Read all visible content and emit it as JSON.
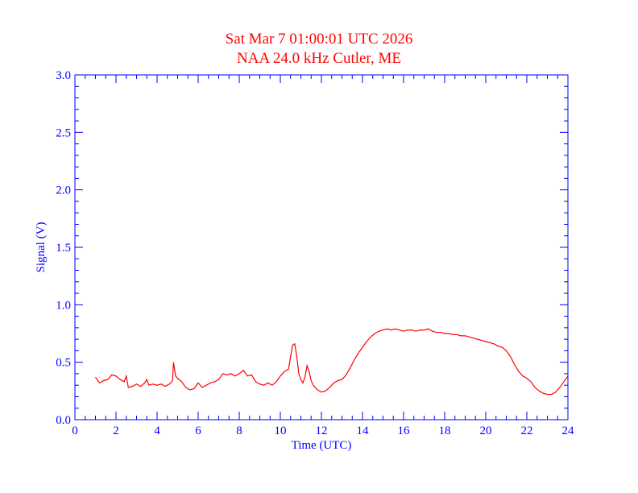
{
  "chart_data": {
    "type": "line",
    "title": "Sat Mar 7 01:00:01 UTC 2026",
    "subtitle": "NAA 24.0 kHz Cutler, ME",
    "xlabel": "Time (UTC)",
    "ylabel": "Signal (V)",
    "xlim": [
      0,
      24
    ],
    "ylim": [
      0,
      3.0
    ],
    "x_ticks": [
      "0",
      "2",
      "4",
      "6",
      "8",
      "10",
      "12",
      "14",
      "16",
      "18",
      "20",
      "22",
      "24"
    ],
    "y_ticks": [
      "0.0",
      "0.5",
      "1.0",
      "1.5",
      "2.0",
      "2.5",
      "3.0"
    ],
    "grid": false,
    "colors": {
      "axes": "#0000ff",
      "series": "#ff0000",
      "title": "#ff0000"
    },
    "series": [
      {
        "x": [
          1.0,
          1.2,
          1.4,
          1.6,
          1.8,
          2.0,
          2.2,
          2.4,
          2.5,
          2.6,
          2.8,
          3.0,
          3.2,
          3.4,
          3.5,
          3.6,
          3.8,
          4.0,
          4.2,
          4.4,
          4.6,
          4.75,
          4.8,
          4.9,
          5.0,
          5.2,
          5.4,
          5.6,
          5.8,
          6.0,
          6.2,
          6.4,
          6.6,
          6.8,
          7.0,
          7.2,
          7.4,
          7.6,
          7.8,
          8.0,
          8.2,
          8.4,
          8.6,
          8.8,
          9.0,
          9.2,
          9.4,
          9.6,
          9.8,
          10.0,
          10.2,
          10.4,
          10.5,
          10.6,
          10.7,
          10.8,
          10.9,
          11.0,
          11.1,
          11.2,
          11.3,
          11.4,
          11.5,
          11.6,
          11.8,
          12.0,
          12.2,
          12.4,
          12.6,
          12.8,
          13.0,
          13.2,
          13.4,
          13.6,
          13.8,
          14.0,
          14.2,
          14.4,
          14.6,
          14.8,
          15.0,
          15.2,
          15.4,
          15.6,
          15.8,
          16.0,
          16.2,
          16.4,
          16.6,
          16.8,
          17.0,
          17.2,
          17.4,
          17.6,
          17.8,
          18.0,
          18.2,
          18.4,
          18.6,
          18.8,
          19.0,
          19.2,
          19.4,
          19.6,
          19.8,
          20.0,
          20.2,
          20.4,
          20.6,
          20.8,
          21.0,
          21.2,
          21.4,
          21.6,
          21.8,
          22.0,
          22.2,
          22.4,
          22.6,
          22.8,
          23.0,
          23.2,
          23.4,
          23.6,
          23.8,
          24.0
        ],
        "y": [
          0.37,
          0.32,
          0.34,
          0.35,
          0.39,
          0.38,
          0.35,
          0.33,
          0.38,
          0.28,
          0.29,
          0.31,
          0.29,
          0.32,
          0.35,
          0.3,
          0.31,
          0.3,
          0.31,
          0.29,
          0.31,
          0.34,
          0.5,
          0.38,
          0.36,
          0.33,
          0.28,
          0.26,
          0.27,
          0.32,
          0.28,
          0.3,
          0.32,
          0.33,
          0.35,
          0.4,
          0.39,
          0.4,
          0.38,
          0.4,
          0.43,
          0.38,
          0.39,
          0.33,
          0.31,
          0.3,
          0.32,
          0.3,
          0.33,
          0.38,
          0.42,
          0.44,
          0.55,
          0.65,
          0.66,
          0.55,
          0.4,
          0.35,
          0.32,
          0.37,
          0.47,
          0.42,
          0.34,
          0.3,
          0.26,
          0.24,
          0.25,
          0.28,
          0.32,
          0.34,
          0.35,
          0.39,
          0.45,
          0.52,
          0.58,
          0.63,
          0.68,
          0.72,
          0.75,
          0.77,
          0.78,
          0.79,
          0.78,
          0.79,
          0.78,
          0.77,
          0.78,
          0.78,
          0.77,
          0.78,
          0.78,
          0.79,
          0.77,
          0.76,
          0.76,
          0.75,
          0.75,
          0.74,
          0.74,
          0.73,
          0.73,
          0.72,
          0.71,
          0.7,
          0.69,
          0.68,
          0.67,
          0.66,
          0.64,
          0.63,
          0.6,
          0.55,
          0.48,
          0.42,
          0.38,
          0.36,
          0.33,
          0.28,
          0.25,
          0.23,
          0.22,
          0.22,
          0.24,
          0.28,
          0.33,
          0.38
        ]
      }
    ]
  }
}
